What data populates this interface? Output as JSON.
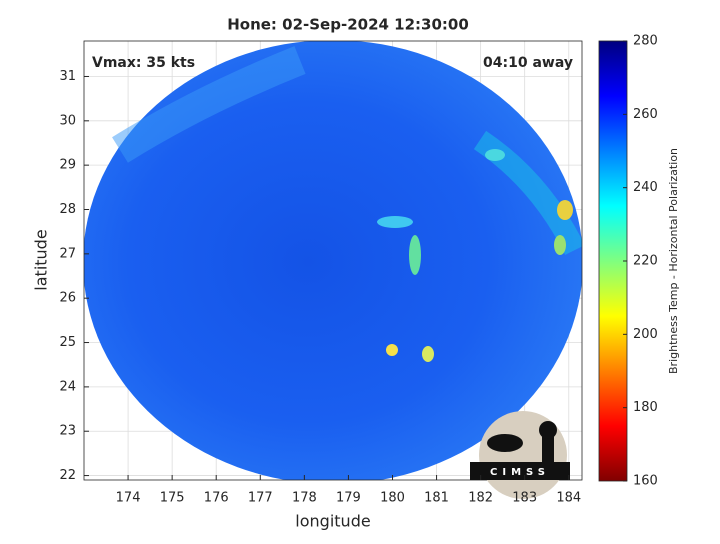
{
  "chart_data": {
    "type": "image",
    "title": "Hone: 02-Sep-2024 12:30:00",
    "xlabel": "longitude",
    "ylabel": "latitude",
    "xlim": [
      173,
      184.3
    ],
    "ylim": [
      21.9,
      31.8
    ],
    "xticks": [
      174,
      175,
      176,
      177,
      178,
      179,
      180,
      181,
      182,
      183,
      184
    ],
    "yticks": [
      22,
      23,
      24,
      25,
      26,
      27,
      28,
      29,
      30,
      31
    ],
    "grid": true,
    "annotations": [
      "Vmax: 35 kts",
      "04:10 away"
    ],
    "colorbar": {
      "label": "Brightness Temp - Horizontal Polarization",
      "clim": [
        160,
        280
      ],
      "ticks": [
        160,
        180,
        200,
        220,
        240,
        260,
        280
      ],
      "colormap": "jet"
    },
    "logo": "CIMSS"
  }
}
